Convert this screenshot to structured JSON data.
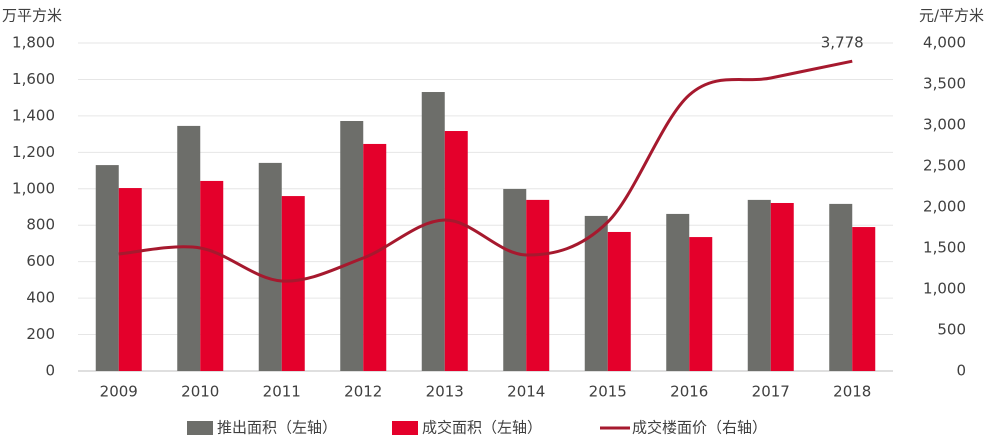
{
  "chart_data": {
    "type": "bar-line",
    "y_label": "万平方米",
    "y2_label": "元/平方米",
    "categories": [
      "2009",
      "2010",
      "2011",
      "2012",
      "2013",
      "2014",
      "2015",
      "2016",
      "2017",
      "2018"
    ],
    "series": [
      {
        "name": "推出面积（左轴）",
        "type": "bar",
        "color": "#6d6e6a",
        "values": [
          1130,
          1345,
          1142,
          1372,
          1531,
          999,
          851,
          862,
          939,
          917
        ]
      },
      {
        "name": "成交面积（左轴）",
        "type": "bar",
        "color": "#e4002b",
        "values": [
          1004,
          1043,
          960,
          1246,
          1317,
          939,
          763,
          735,
          922,
          790
        ]
      },
      {
        "name": "成交楼面价（右轴）",
        "type": "line",
        "axis": "y2",
        "color": "#a6192e",
        "values": [
          1427,
          1500,
          1098,
          1378,
          1841,
          1415,
          1817,
          3366,
          3573,
          3778
        ],
        "value_labels": [
          null,
          null,
          null,
          null,
          null,
          null,
          null,
          null,
          null,
          "3,778"
        ]
      }
    ],
    "ylim": [
      0,
      1800
    ],
    "yticks": [
      0,
      200,
      400,
      600,
      800,
      {
        "value": 1000,
        "label": "1,000"
      },
      {
        "value": 1200,
        "label": "1,200"
      },
      {
        "value": 1400,
        "label": "1,400"
      },
      {
        "value": 1600,
        "label": "1,600"
      },
      {
        "value": 1800,
        "label": "1,800"
      }
    ],
    "y2lim": [
      0,
      4000
    ],
    "y2ticks": [
      0,
      500,
      {
        "value": 1000,
        "label": "1,000"
      },
      {
        "value": 1500,
        "label": "1,500"
      },
      {
        "value": 2000,
        "label": "2,000"
      },
      {
        "value": 2500,
        "label": "2,500"
      },
      {
        "value": 3000,
        "label": "3,000"
      },
      {
        "value": 3500,
        "label": "3,500"
      },
      {
        "value": 4000,
        "label": "4,000"
      }
    ],
    "grid": true,
    "legend": "bottom"
  }
}
